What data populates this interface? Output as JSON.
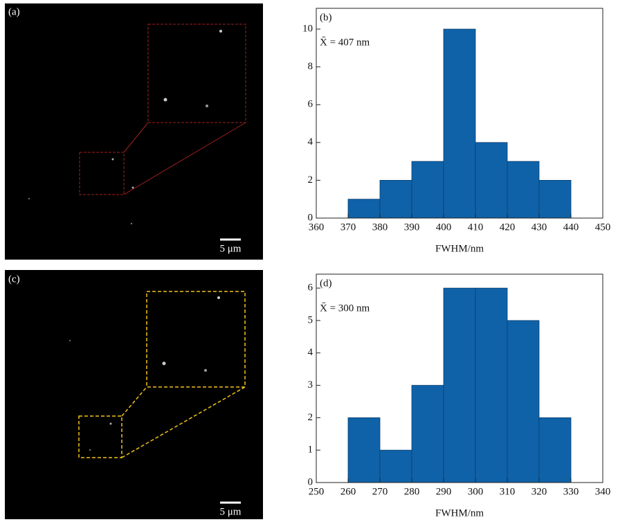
{
  "images": [
    {
      "label": "(a)",
      "scale_bar": "5 μm"
    },
    {
      "label": "(c)",
      "scale_bar": "5 μm"
    }
  ],
  "chart_data": [
    {
      "type": "histogram",
      "label": "(b)",
      "annotation": "X̄ = 407 nm",
      "x_label": "FWHM/nm",
      "bins": [
        370,
        380,
        390,
        400,
        410,
        420,
        430,
        440
      ],
      "values": [
        1,
        2,
        3,
        10,
        4,
        3,
        2
      ],
      "color": "#0f62a8",
      "xlim": [
        360,
        450
      ],
      "xticks": [
        360,
        370,
        380,
        390,
        400,
        410,
        420,
        430,
        440,
        450
      ],
      "ylim": [
        0,
        11.1
      ],
      "yticks": [
        0,
        2,
        4,
        6,
        8,
        10
      ]
    },
    {
      "type": "histogram",
      "label": "(d)",
      "annotation": "X̄ = 300 nm",
      "x_label": "FWHM/nm",
      "bins": [
        260,
        270,
        280,
        290,
        300,
        310,
        320,
        330
      ],
      "values": [
        2,
        1,
        3,
        6,
        6,
        5,
        2
      ],
      "color": "#0f62a8",
      "xlim": [
        250,
        340
      ],
      "xticks": [
        250,
        260,
        270,
        280,
        290,
        300,
        310,
        320,
        330,
        340
      ],
      "ylim": [
        0,
        6.43
      ],
      "yticks": [
        0,
        1,
        2,
        3,
        4,
        5,
        6
      ]
    }
  ]
}
